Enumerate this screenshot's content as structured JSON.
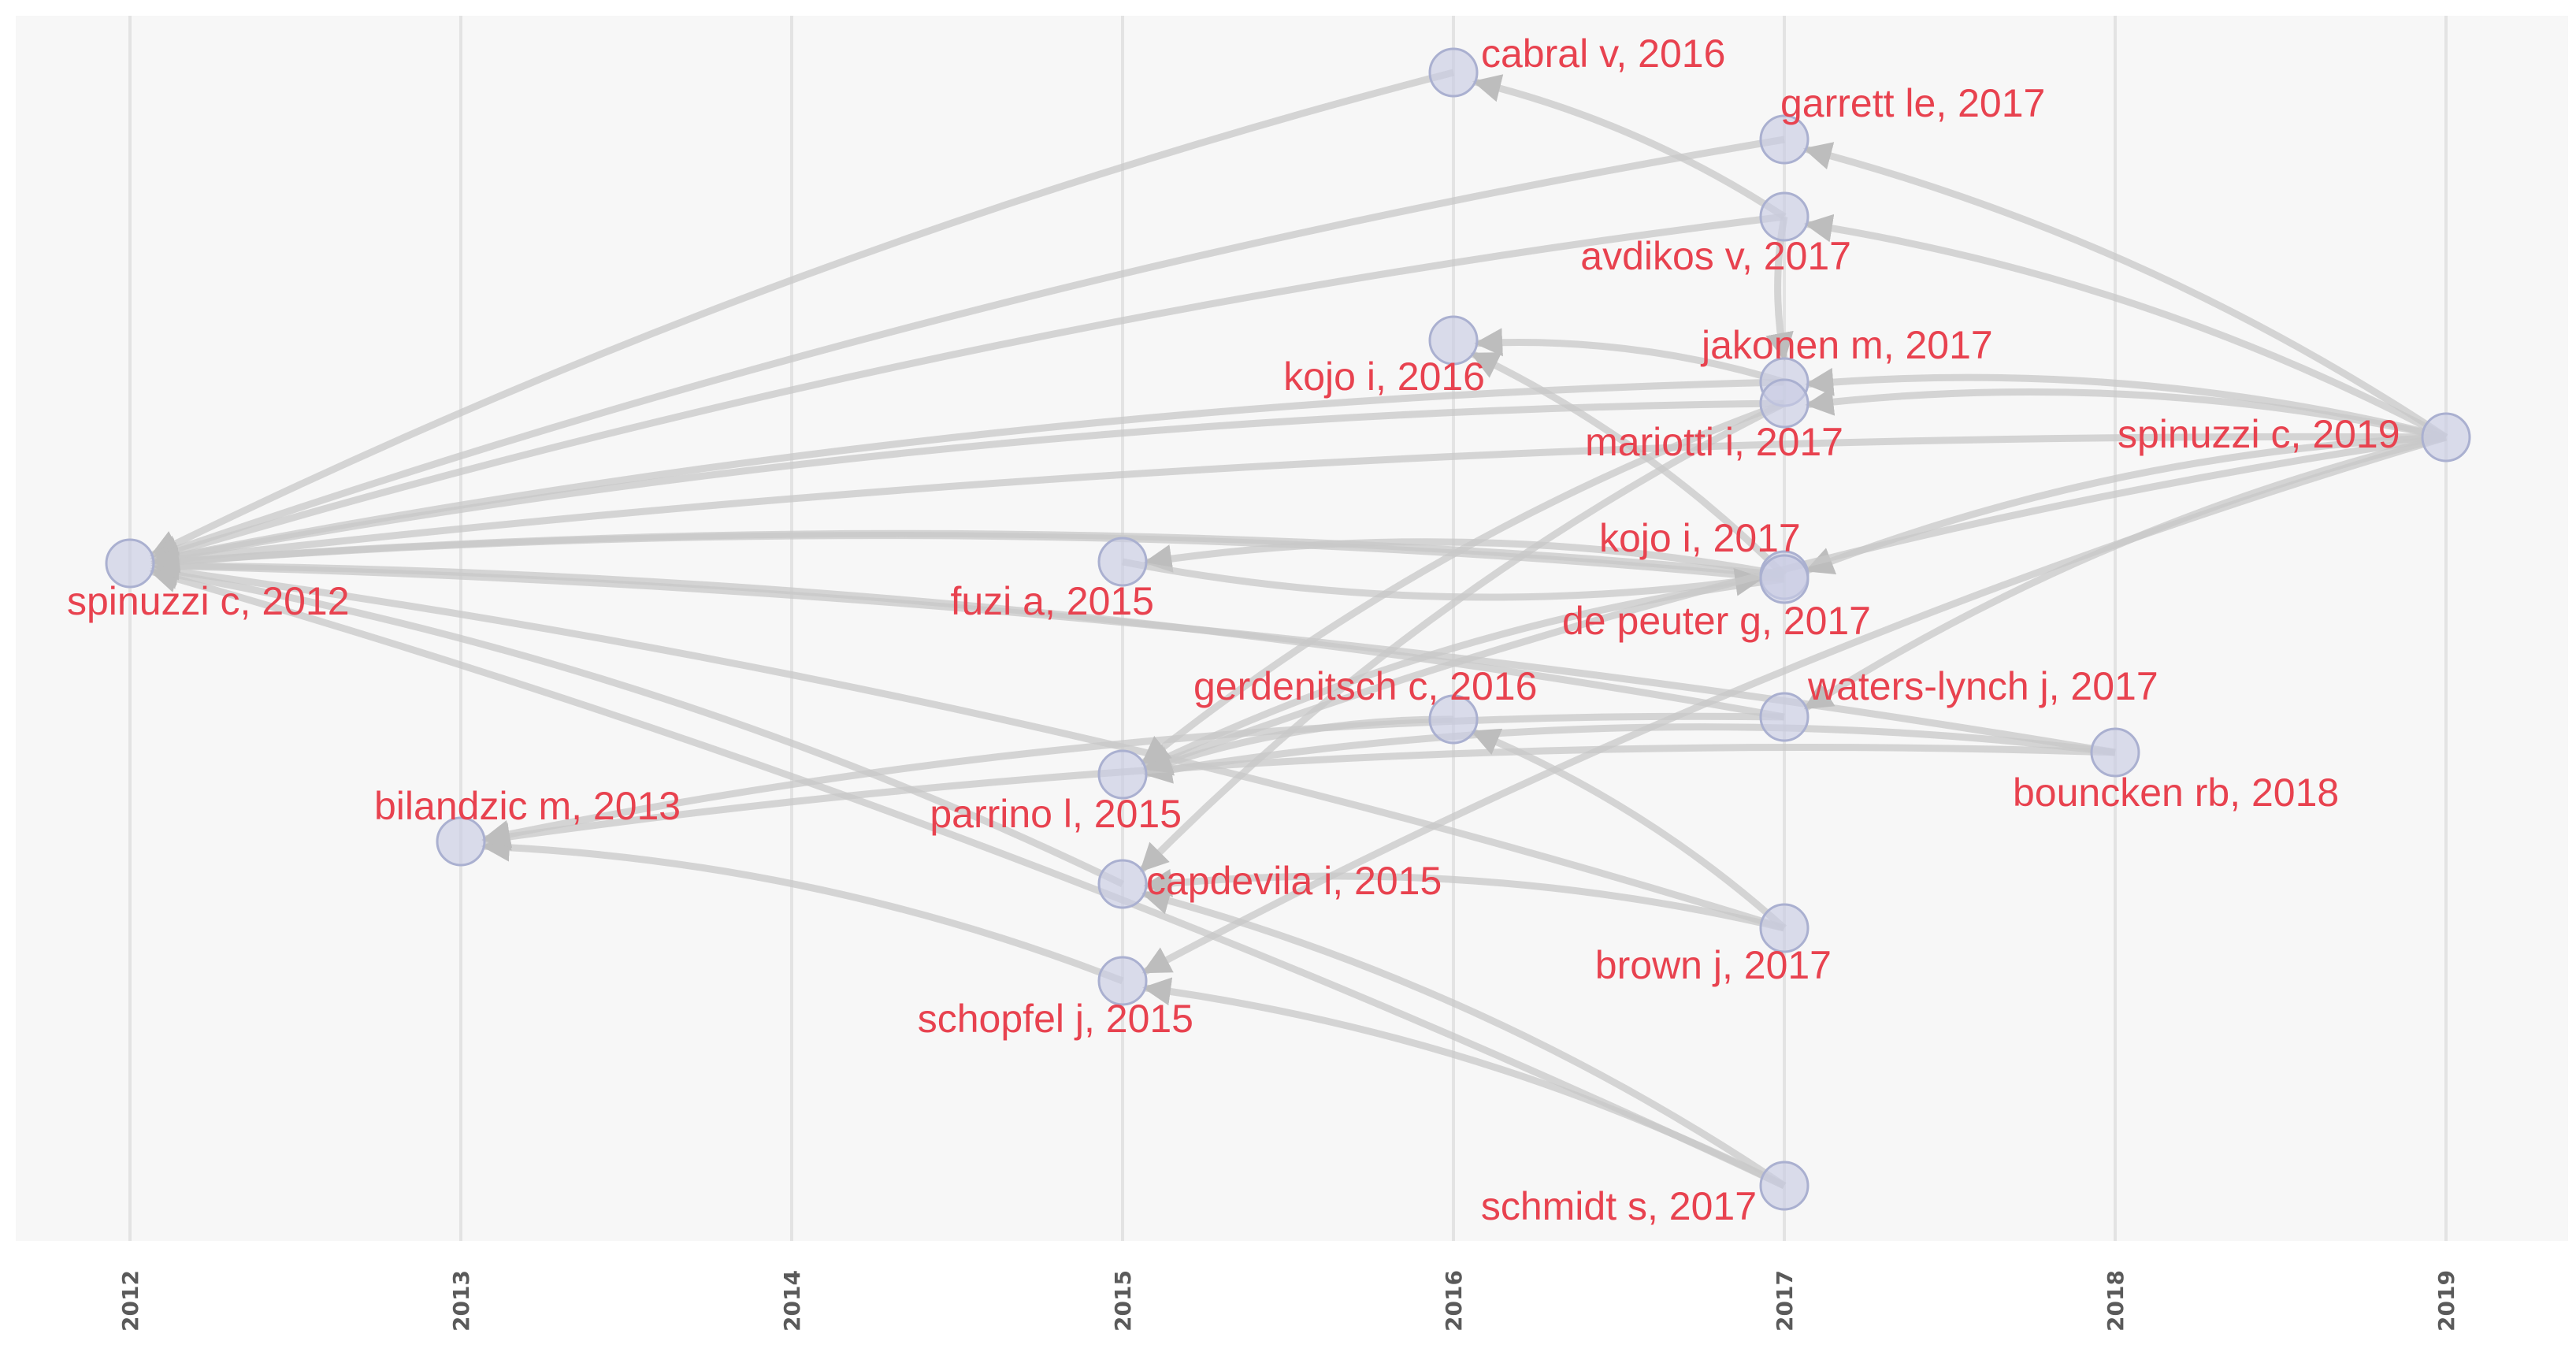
{
  "chart_data": {
    "type": "network",
    "x_axis": {
      "ticks": [
        "2012",
        "2013",
        "2014",
        "2015",
        "2016",
        "2017",
        "2018",
        "2019"
      ]
    },
    "nodes": [
      {
        "id": "spinuzzi-c-2012",
        "label": "spinuzzi c, 2012",
        "year": 2012
      },
      {
        "id": "bilandzic-m-2013",
        "label": "bilandzic m, 2013",
        "year": 2013
      },
      {
        "id": "fuzi-a-2015",
        "label": "fuzi a, 2015",
        "year": 2015
      },
      {
        "id": "parrino-l-2015",
        "label": "parrino l, 2015",
        "year": 2015
      },
      {
        "id": "capdevila-i-2015",
        "label": "capdevila i, 2015",
        "year": 2015
      },
      {
        "id": "schopfel-j-2015",
        "label": "schopfel j, 2015",
        "year": 2015
      },
      {
        "id": "cabral-v-2016",
        "label": "cabral v, 2016",
        "year": 2016
      },
      {
        "id": "kojo-i-2016",
        "label": "kojo i, 2016",
        "year": 2016
      },
      {
        "id": "gerdenitsch-c-2016",
        "label": "gerdenitsch c, 2016",
        "year": 2016
      },
      {
        "id": "garrett-le-2017",
        "label": "garrett le, 2017",
        "year": 2017
      },
      {
        "id": "avdikos-v-2017",
        "label": "avdikos v, 2017",
        "year": 2017
      },
      {
        "id": "jakonen-m-2017",
        "label": "jakonen m, 2017",
        "year": 2017
      },
      {
        "id": "mariotti-i-2017",
        "label": "mariotti i, 2017",
        "year": 2017
      },
      {
        "id": "kojo-i-2017",
        "label": "kojo i, 2017",
        "year": 2017
      },
      {
        "id": "de-peuter-g-2017",
        "label": "de peuter g, 2017",
        "year": 2017
      },
      {
        "id": "waters-lynch-j-2017",
        "label": "waters-lynch j, 2017",
        "year": 2017
      },
      {
        "id": "brown-j-2017",
        "label": "brown j, 2017",
        "year": 2017
      },
      {
        "id": "schmidt-s-2017",
        "label": "schmidt s, 2017",
        "year": 2017
      },
      {
        "id": "bouncken-rb-2018",
        "label": "bouncken rb, 2018",
        "year": 2018
      },
      {
        "id": "spinuzzi-c-2019",
        "label": "spinuzzi c, 2019",
        "year": 2019
      }
    ],
    "edges": [
      {
        "source": "cabral-v-2016",
        "target": "spinuzzi-c-2012"
      },
      {
        "source": "garrett-le-2017",
        "target": "spinuzzi-c-2012"
      },
      {
        "source": "avdikos-v-2017",
        "target": "spinuzzi-c-2012"
      },
      {
        "source": "jakonen-m-2017",
        "target": "spinuzzi-c-2012"
      },
      {
        "source": "mariotti-i-2017",
        "target": "spinuzzi-c-2012"
      },
      {
        "source": "kojo-i-2017",
        "target": "spinuzzi-c-2012"
      },
      {
        "source": "de-peuter-g-2017",
        "target": "spinuzzi-c-2012"
      },
      {
        "source": "waters-lynch-j-2017",
        "target": "spinuzzi-c-2012"
      },
      {
        "source": "brown-j-2017",
        "target": "spinuzzi-c-2012"
      },
      {
        "source": "schmidt-s-2017",
        "target": "spinuzzi-c-2012"
      },
      {
        "source": "capdevila-i-2015",
        "target": "spinuzzi-c-2012"
      },
      {
        "source": "bouncken-rb-2018",
        "target": "spinuzzi-c-2012"
      },
      {
        "source": "spinuzzi-c-2019",
        "target": "spinuzzi-c-2012"
      },
      {
        "source": "kojo-i-2017",
        "target": "fuzi-a-2015"
      },
      {
        "source": "de-peuter-g-2017",
        "target": "parrino-l-2015"
      },
      {
        "source": "gerdenitsch-c-2016",
        "target": "parrino-l-2015"
      },
      {
        "source": "bouncken-rb-2018",
        "target": "parrino-l-2015"
      },
      {
        "source": "mariotti-i-2017",
        "target": "capdevila-i-2015"
      },
      {
        "source": "schmidt-s-2017",
        "target": "capdevila-i-2015"
      },
      {
        "source": "spinuzzi-c-2019",
        "target": "schopfel-j-2015"
      },
      {
        "source": "schopfel-j-2015",
        "target": "bilandzic-m-2013"
      },
      {
        "source": "bouncken-rb-2018",
        "target": "bilandzic-m-2013"
      },
      {
        "source": "avdikos-v-2017",
        "target": "cabral-v-2016"
      },
      {
        "source": "spinuzzi-c-2019",
        "target": "garrett-le-2017"
      },
      {
        "source": "spinuzzi-c-2019",
        "target": "avdikos-v-2017"
      },
      {
        "source": "jakonen-m-2017",
        "target": "kojo-i-2016"
      },
      {
        "source": "kojo-i-2017",
        "target": "kojo-i-2016"
      },
      {
        "source": "spinuzzi-c-2019",
        "target": "jakonen-m-2017"
      },
      {
        "source": "spinuzzi-c-2019",
        "target": "mariotti-i-2017"
      },
      {
        "source": "spinuzzi-c-2019",
        "target": "kojo-i-2017"
      },
      {
        "source": "fuzi-a-2015",
        "target": "de-peuter-g-2017"
      },
      {
        "source": "brown-j-2017",
        "target": "gerdenitsch-c-2016"
      },
      {
        "source": "schmidt-s-2017",
        "target": "schopfel-j-2015"
      },
      {
        "source": "waters-lynch-j-2017",
        "target": "bilandzic-m-2013"
      },
      {
        "source": "spinuzzi-c-2019",
        "target": "parrino-l-2015"
      },
      {
        "source": "brown-j-2017",
        "target": "capdevila-i-2015"
      },
      {
        "source": "avdikos-v-2017",
        "target": "jakonen-m-2017"
      },
      {
        "source": "spinuzzi-c-2019",
        "target": "waters-lynch-j-2017"
      },
      {
        "source": "mariotti-i-2017",
        "target": "parrino-l-2015"
      }
    ],
    "colors": {
      "background": "#f7f7f7",
      "gridline": "#e3e3e3",
      "edge": "#c8c8c8",
      "node_fill": "#c9cde3",
      "node_stroke": "#aab0d0",
      "label": "#e8424f",
      "axis_label": "#5a5a5a"
    }
  }
}
